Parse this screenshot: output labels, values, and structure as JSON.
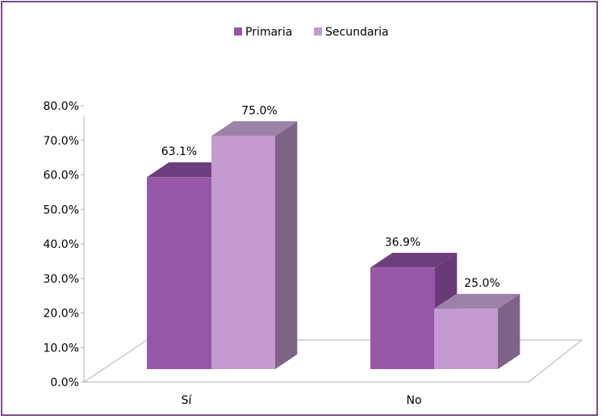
{
  "chart_data": {
    "type": "bar",
    "categories": [
      "Sí",
      "No"
    ],
    "series": [
      {
        "name": "Primaria",
        "values": [
          63.1,
          36.9
        ],
        "labels": [
          "63.1%",
          "36.9%"
        ]
      },
      {
        "name": "Secundaria",
        "values": [
          75.0,
          25.0
        ],
        "labels": [
          "75.0%",
          "25.0%"
        ]
      }
    ],
    "yticks": [
      "0.0%",
      "10.0%",
      "20.0%",
      "30.0%",
      "40.0%",
      "50.0%",
      "60.0%",
      "70.0%",
      "80.0%"
    ],
    "ylim": [
      0,
      80
    ],
    "legend_position": "top",
    "colors": {
      "primaria_front": "#9657a6",
      "primaria_top": "#6e3f7e",
      "primaria_side": "#6a3a78",
      "secundaria_front": "#c49ad0",
      "secundaria_top": "#9c82a6",
      "secundaria_side": "#7e6588",
      "frame": "#7a4e8e"
    }
  }
}
